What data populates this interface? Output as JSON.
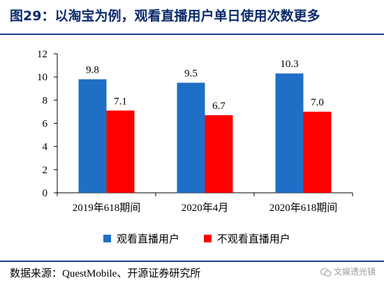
{
  "header": {
    "title": "图29：以淘宝为例，观看直播用户单日使用次数更多"
  },
  "footer": {
    "source": "数据来源：QuestMobile、开源证券研究所",
    "watermark": "文娱透光镜"
  },
  "colors": {
    "series1": "#1f6fc6",
    "series2": "#ff0000",
    "axis": "#000000",
    "title": "#0b2a6b"
  },
  "chart_data": {
    "type": "bar",
    "categories": [
      "2019年618期间",
      "2020年4月",
      "2020年618期间"
    ],
    "series": [
      {
        "name": "观看直播用户",
        "values": [
          9.8,
          9.5,
          10.3
        ],
        "labels": [
          "9.8",
          "9.5",
          "10.3"
        ]
      },
      {
        "name": "不观看直播用户",
        "values": [
          7.1,
          6.7,
          7.0
        ],
        "labels": [
          "7.1",
          "6.7",
          "7.0"
        ]
      }
    ],
    "ylim": [
      0,
      12
    ],
    "yticks": [
      0,
      2,
      4,
      6,
      8,
      10,
      12
    ],
    "grid": false,
    "legend": "bottom"
  }
}
